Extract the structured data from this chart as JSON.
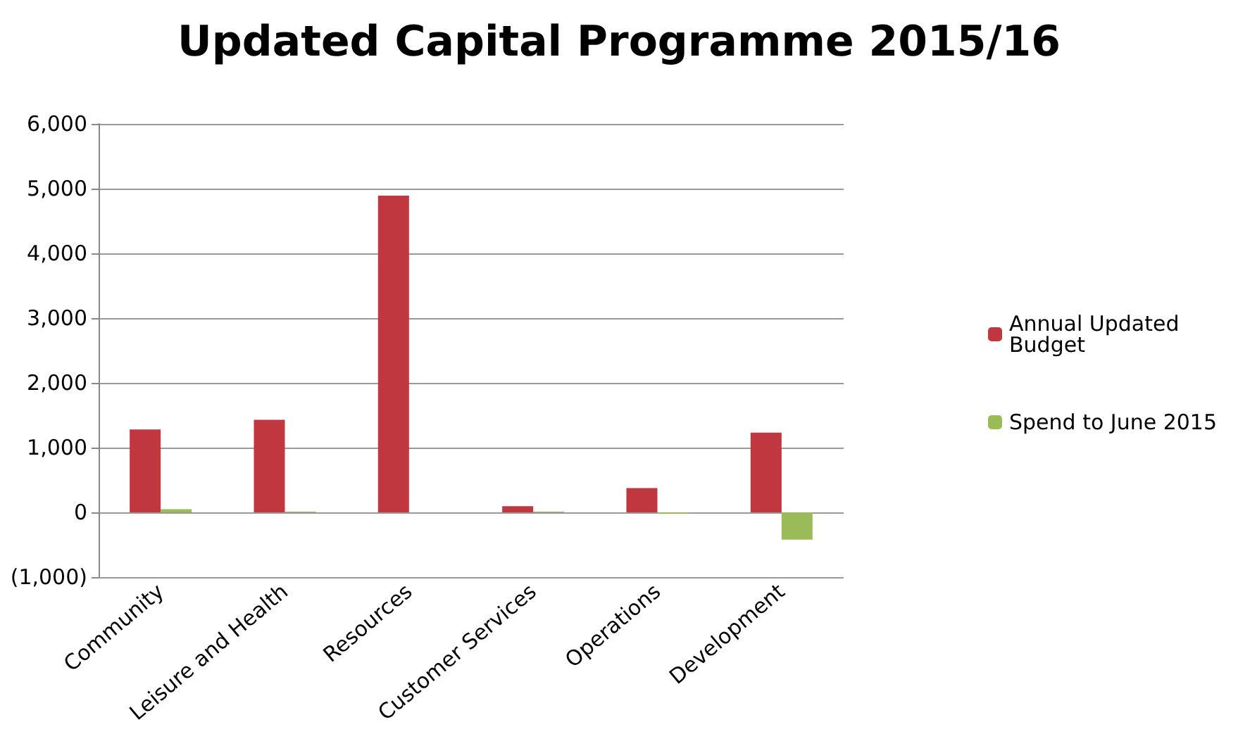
{
  "chart_data": {
    "type": "bar",
    "title": "Updated Capital Programme 2015/16",
    "categories": [
      "Community",
      "Leisure and Health",
      "Resources",
      "Customer Services",
      "Operations",
      "Development"
    ],
    "series": [
      {
        "name": "Annual Updated Budget",
        "color": "#c0373f",
        "values": [
          1280,
          1430,
          4890,
          95,
          375,
          1230
        ]
      },
      {
        "name": "Spend to June 2015",
        "color": "#9bbb59",
        "values": [
          50,
          10,
          0,
          10,
          -20,
          -420
        ]
      }
    ],
    "ylim": [
      -1000,
      6000
    ],
    "yticks": [
      {
        "value": -1000,
        "label": "(1,000)"
      },
      0,
      {
        "value": 1000,
        "label": "1,000"
      },
      {
        "value": 2000,
        "label": "2,000"
      },
      {
        "value": 3000,
        "label": "3,000"
      },
      {
        "value": 4000,
        "label": "4,000"
      },
      {
        "value": 5000,
        "label": "5,000"
      },
      {
        "value": 6000,
        "label": "6,000"
      }
    ],
    "grid": "y",
    "legend": "right"
  }
}
